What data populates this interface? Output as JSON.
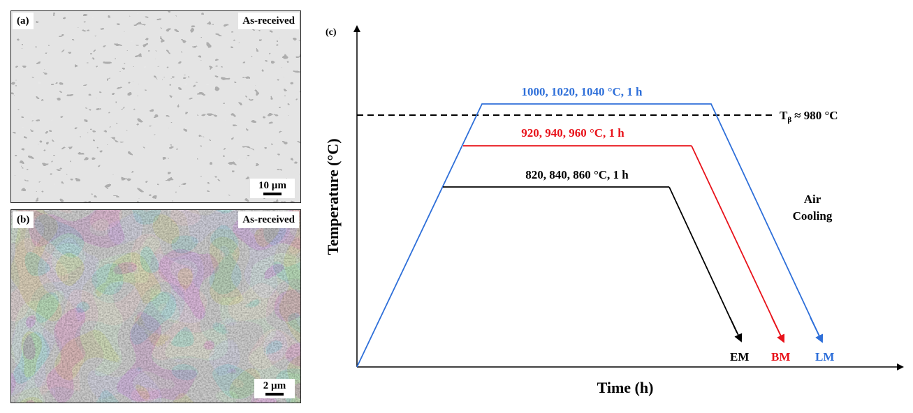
{
  "panel_a": {
    "label": "(a)",
    "condition": "As-received",
    "scale_bar": "10 µm"
  },
  "panel_b": {
    "label": "(b)",
    "condition": "As-received",
    "scale_bar": "2 µm"
  },
  "diagram": {
    "label": "(c)",
    "y_axis": "Temperature (°C)",
    "x_axis": "Time (h)",
    "tbeta_symbol": "T",
    "tbeta_sub": "β",
    "tbeta_value": "≈ 980 °C",
    "cooling_line1": "Air",
    "cooling_line2": "Cooling",
    "schedules": [
      {
        "label": "1000, 1020, 1040 °C, 1 h",
        "end_label": "LM",
        "color": "#2e6fd9"
      },
      {
        "label": "920, 940, 960 °C, 1 h",
        "end_label": "BM",
        "color": "#e8121a"
      },
      {
        "label": "820, 840, 860 °C, 1 h",
        "end_label": "EM",
        "color": "#000000"
      }
    ]
  }
}
